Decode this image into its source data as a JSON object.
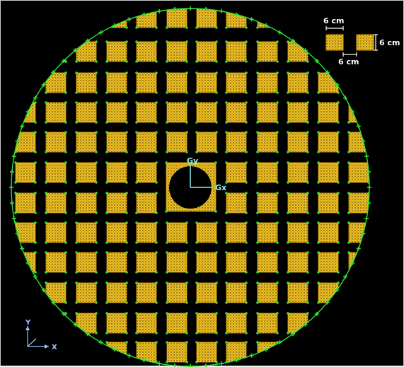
{
  "colors": {
    "background": "#000000",
    "boundary": "#33e033",
    "tile_fill": "#f0c020",
    "tile_edge": "#d8a010",
    "mesh_dots": "#1a1a1a",
    "nodes": "#33e033",
    "dimension_text": "#ffffff",
    "axis_marker": "#8ff0f0",
    "triad": "#9bc3ff"
  },
  "legend": {
    "width_dim": "6 cm",
    "gap_dim": "6 cm",
    "height_dim": "6 cm"
  },
  "center_markers": {
    "gy_label": "Gy",
    "gx_label": "Gx"
  },
  "triad": {
    "y_label": "Y",
    "x_label": "X"
  },
  "icons": {
    "boundary": "circle-outline-icon",
    "tile": "square-tile-icon",
    "triad": "axis-triad-icon"
  }
}
